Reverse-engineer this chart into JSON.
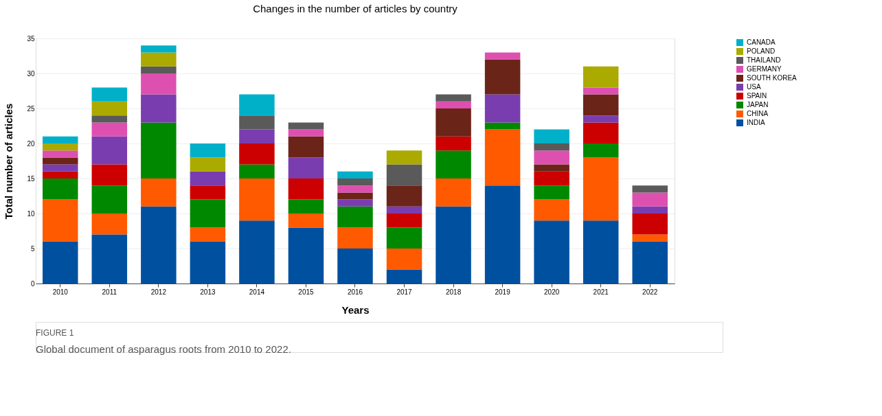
{
  "chart_data": {
    "type": "bar",
    "stacked": true,
    "title": "Changes in the number of articles by country",
    "xlabel": "Years",
    "ylabel": "Total number of articles",
    "categories": [
      "2010",
      "2011",
      "2012",
      "2013",
      "2014",
      "2015",
      "2016",
      "2017",
      "2018",
      "2019",
      "2020",
      "2021",
      "2022"
    ],
    "series": [
      {
        "name": "INDIA",
        "color": "#0050a0",
        "values": [
          6,
          7,
          11,
          6,
          9,
          8,
          5,
          2,
          11,
          14,
          9,
          9,
          6
        ]
      },
      {
        "name": "CHINA",
        "color": "#ff5a00",
        "values": [
          6,
          3,
          4,
          2,
          6,
          2,
          3,
          3,
          4,
          8,
          3,
          9,
          1
        ]
      },
      {
        "name": "JAPAN",
        "color": "#008800",
        "values": [
          3,
          4,
          8,
          4,
          2,
          2,
          3,
          3,
          4,
          1,
          2,
          2,
          0
        ]
      },
      {
        "name": "SPAIN",
        "color": "#cc0000",
        "values": [
          1,
          3,
          0,
          2,
          3,
          3,
          0,
          2,
          2,
          0,
          2,
          3,
          3
        ]
      },
      {
        "name": "USA",
        "color": "#7a3db0",
        "values": [
          1,
          4,
          4,
          2,
          2,
          3,
          1,
          1,
          0,
          4,
          0,
          1,
          1
        ]
      },
      {
        "name": "SOUTH KOREA",
        "color": "#6b2418",
        "values": [
          1,
          0,
          0,
          0,
          0,
          3,
          1,
          3,
          4,
          5,
          1,
          3,
          0
        ]
      },
      {
        "name": "GERMANY",
        "color": "#dd50b0",
        "values": [
          1,
          2,
          3,
          0,
          0,
          1,
          1,
          0,
          1,
          1,
          2,
          1,
          2
        ]
      },
      {
        "name": "THAILAND",
        "color": "#5a5a5a",
        "values": [
          0,
          1,
          1,
          0,
          2,
          1,
          1,
          3,
          1,
          0,
          1,
          0,
          1
        ]
      },
      {
        "name": "POLAND",
        "color": "#aaaa00",
        "values": [
          1,
          2,
          2,
          2,
          0,
          0,
          0,
          2,
          0,
          0,
          0,
          3,
          0
        ]
      },
      {
        "name": "CANADA",
        "color": "#00b0c8",
        "values": [
          1,
          2,
          1,
          2,
          3,
          0,
          1,
          0,
          0,
          0,
          2,
          0,
          0
        ]
      }
    ],
    "ylim": [
      0,
      35
    ],
    "yticks": [
      0,
      5,
      10,
      15,
      20,
      25,
      30,
      35
    ],
    "grid": "y",
    "legend": "top right",
    "annotations": [
      "FIGURE 1",
      "Global document of asparagus roots from 2010 to 2022."
    ]
  }
}
